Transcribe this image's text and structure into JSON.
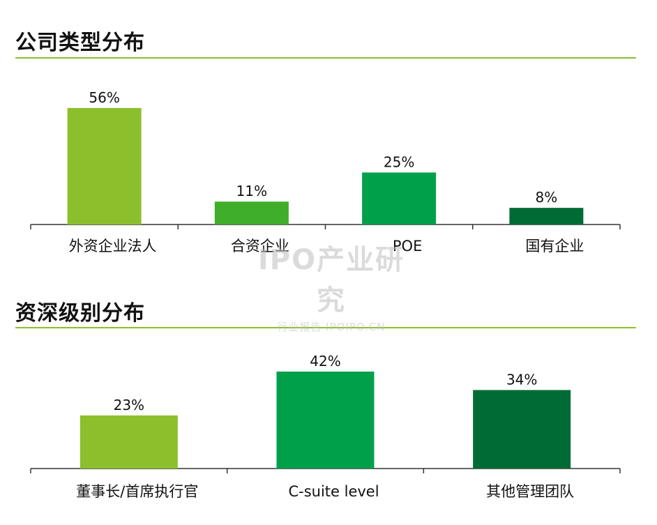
{
  "chart_data": [
    {
      "type": "bar",
      "title": "公司类型分布",
      "categories": [
        "外资企业法人",
        "合资企业",
        "POE",
        "国有企业"
      ],
      "values": [
        56,
        11,
        25,
        8
      ],
      "value_labels": [
        "56%",
        "11%",
        "25%",
        "8%"
      ],
      "colors": [
        "#8cbf2c",
        "#3fae2a",
        "#00a04a",
        "#006b35"
      ],
      "ylim": [
        0,
        60
      ],
      "grid": false
    },
    {
      "type": "bar",
      "title": "资深级别分布",
      "categories": [
        "董事长/首席执行官",
        "C-suite level",
        "其他管理团队"
      ],
      "values": [
        23,
        42,
        34
      ],
      "value_labels": [
        "23%",
        "42%",
        "34%"
      ],
      "colors": [
        "#8cbf2c",
        "#00a04a",
        "#006b35"
      ],
      "ylim": [
        0,
        45
      ],
      "grid": false
    }
  ],
  "watermark": {
    "main": "IPO产业研究",
    "sub": "行业报告 IPOIPO.CN"
  }
}
